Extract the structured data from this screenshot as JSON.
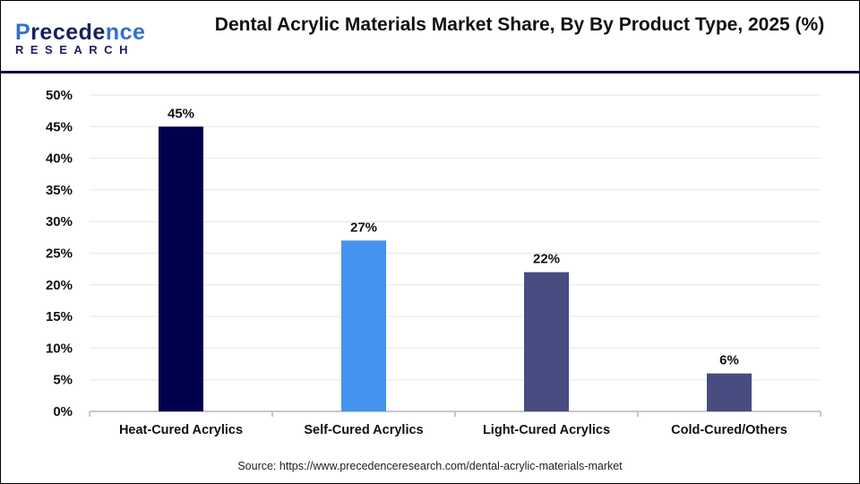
{
  "logo": {
    "line1a": "P",
    "line1b": "recede",
    "line1c": "nce",
    "line2": "RESEARCH"
  },
  "title": "Dental Acrylic Materials Market Share, By By Product Type, 2025 (%)",
  "source": "Source: https://www.precedenceresearch.com/dental-acrylic-materials-market",
  "chart_data": {
    "type": "bar",
    "title": "Dental Acrylic Materials Market Share, By By Product Type, 2025 (%)",
    "categories": [
      "Heat-Cured Acrylics",
      "Self-Cured Acrylics",
      "Light-Cured Acrylics",
      "Cold-Cured/Others"
    ],
    "values": [
      45,
      27,
      22,
      6
    ],
    "data_labels": [
      "45%",
      "27%",
      "22%",
      "6%"
    ],
    "colors": [
      "#00004f",
      "#4393ef",
      "#484c80",
      "#484c80"
    ],
    "ylim": [
      0,
      50
    ],
    "yticks": [
      "0%",
      "5%",
      "10%",
      "15%",
      "20%",
      "25%",
      "30%",
      "35%",
      "40%",
      "45%",
      "50%"
    ],
    "grid": true,
    "xlabel": "",
    "ylabel": ""
  }
}
